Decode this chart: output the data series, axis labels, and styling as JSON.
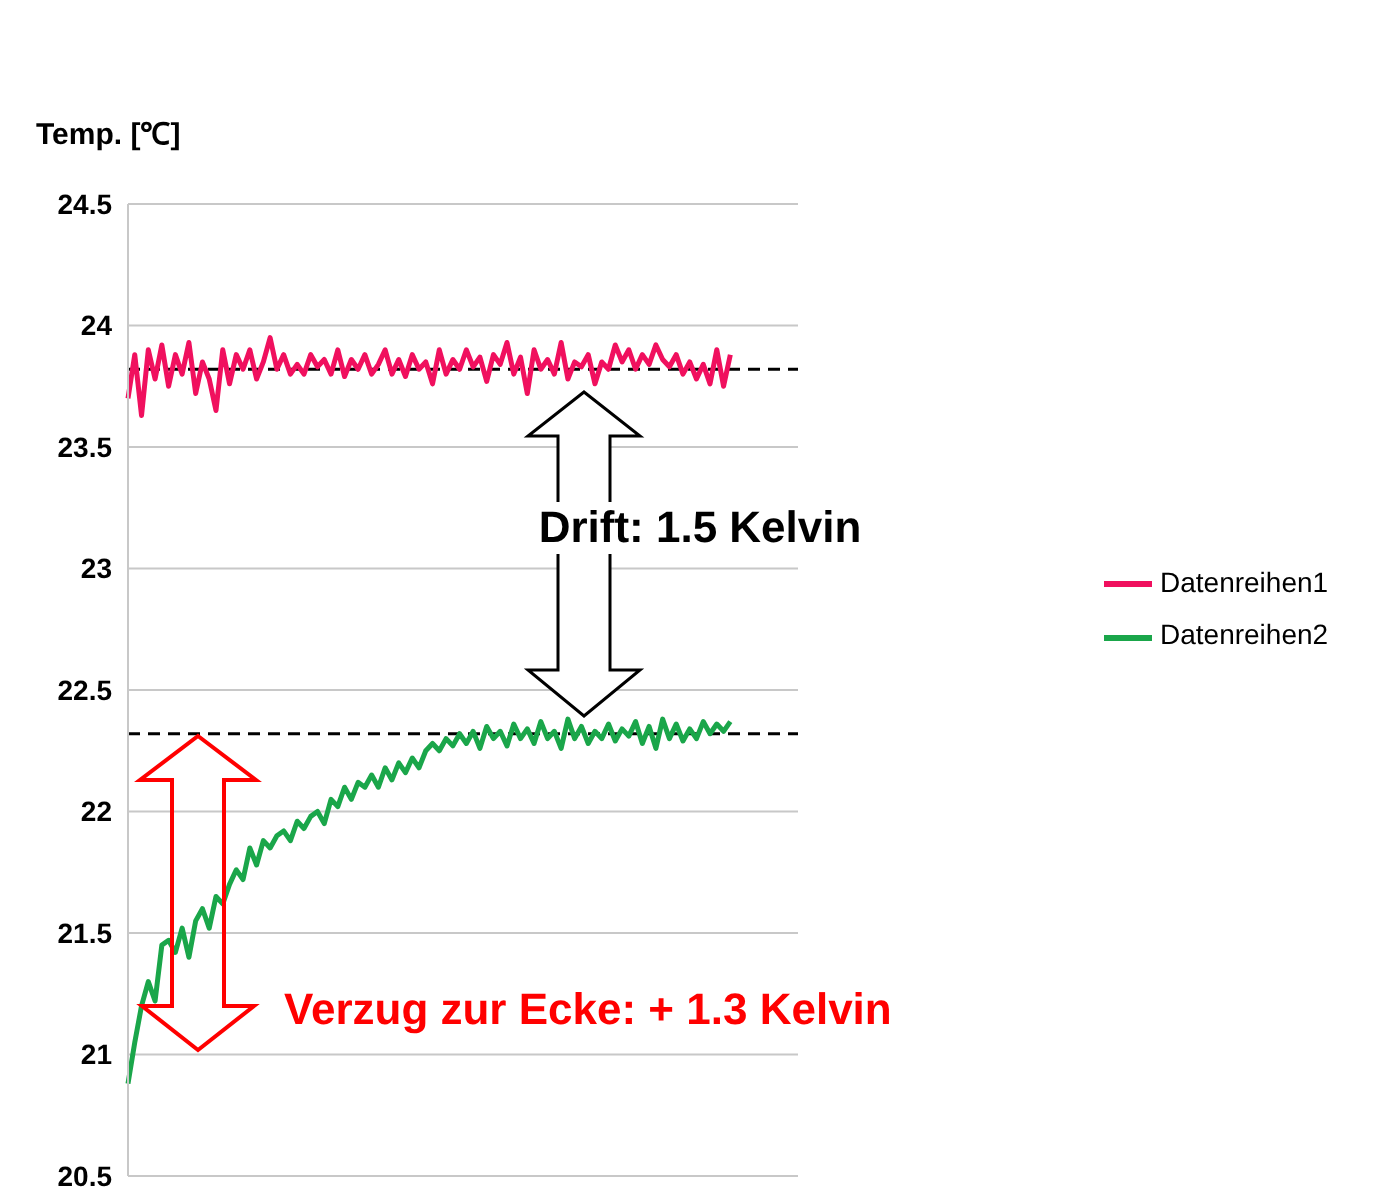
{
  "chart_data": {
    "type": "line",
    "ylabel": "Temp. [℃]",
    "categories": [
      null,
      null,
      null,
      null,
      null,
      null,
      null,
      null,
      null,
      null,
      null,
      null,
      null,
      null,
      null,
      null,
      null,
      null,
      null,
      null,
      null,
      null,
      null,
      null,
      null,
      null,
      null,
      null,
      null,
      null,
      null,
      null,
      null,
      null,
      null,
      null,
      null,
      null,
      null,
      null,
      null,
      null,
      null,
      null,
      null,
      null,
      null,
      null,
      null,
      null,
      null,
      null,
      null,
      null,
      null,
      null,
      null,
      null,
      null,
      null,
      null,
      null,
      null,
      null,
      null,
      null,
      null,
      null,
      null,
      null,
      null,
      null,
      null,
      null,
      null,
      null,
      null,
      null,
      null,
      null,
      null,
      null,
      null,
      null,
      null,
      null,
      null,
      null,
      null,
      null,
      null,
      null,
      null,
      null,
      null,
      null,
      null,
      null,
      null,
      null
    ],
    "series": [
      {
        "name": "Datenreihen1",
        "color": "#f0105e",
        "values": [
          23.7,
          23.88,
          23.63,
          23.9,
          23.78,
          23.92,
          23.75,
          23.88,
          23.8,
          23.93,
          23.72,
          23.85,
          23.78,
          23.65,
          23.9,
          23.76,
          23.88,
          23.82,
          23.9,
          23.78,
          23.85,
          23.95,
          23.82,
          23.88,
          23.8,
          23.84,
          23.8,
          23.88,
          23.83,
          23.86,
          23.8,
          23.9,
          23.79,
          23.86,
          23.82,
          23.88,
          23.8,
          23.84,
          23.9,
          23.8,
          23.86,
          23.79,
          23.88,
          23.82,
          23.85,
          23.76,
          23.9,
          23.8,
          23.86,
          23.82,
          23.9,
          23.83,
          23.87,
          23.77,
          23.88,
          23.84,
          23.93,
          23.8,
          23.87,
          23.72,
          23.9,
          23.82,
          23.86,
          23.8,
          23.93,
          23.78,
          23.85,
          23.83,
          23.88,
          23.76,
          23.85,
          23.82,
          23.92,
          23.85,
          23.9,
          23.82,
          23.88,
          23.84,
          23.92,
          23.86,
          23.83,
          23.88,
          23.8,
          23.85,
          23.78,
          23.84,
          23.76,
          23.9,
          23.75,
          23.88,
          null,
          null,
          null,
          null,
          null,
          null,
          null,
          null,
          null,
          null
        ]
      },
      {
        "name": "Datenreihen2",
        "color": "#1aa64a",
        "values": [
          20.88,
          21.05,
          21.2,
          21.3,
          21.22,
          21.45,
          21.47,
          21.42,
          21.52,
          21.4,
          21.55,
          21.6,
          21.52,
          21.65,
          21.62,
          21.7,
          21.76,
          21.72,
          21.85,
          21.78,
          21.88,
          21.85,
          21.9,
          21.92,
          21.88,
          21.96,
          21.93,
          21.98,
          22.0,
          21.95,
          22.05,
          22.02,
          22.1,
          22.05,
          22.12,
          22.1,
          22.15,
          22.1,
          22.18,
          22.13,
          22.2,
          22.16,
          22.22,
          22.18,
          22.25,
          22.28,
          22.25,
          22.3,
          22.27,
          22.32,
          22.28,
          22.33,
          22.26,
          22.35,
          22.3,
          22.33,
          22.27,
          22.36,
          22.3,
          22.34,
          22.28,
          22.37,
          22.3,
          22.33,
          22.26,
          22.38,
          22.3,
          22.35,
          22.28,
          22.33,
          22.3,
          22.36,
          22.29,
          22.34,
          22.31,
          22.37,
          22.28,
          22.35,
          22.26,
          22.38,
          22.3,
          22.36,
          22.29,
          22.34,
          22.3,
          22.37,
          22.32,
          22.36,
          22.33,
          22.37,
          null,
          null,
          null,
          null,
          null,
          null,
          null,
          null,
          null,
          null
        ]
      }
    ],
    "ylim": [
      20.5,
      24.5
    ],
    "yticks": [
      20.5,
      21,
      21.5,
      22,
      22.5,
      23,
      23.5,
      24,
      24.5
    ],
    "grid": "y",
    "legend": "right",
    "marker": "none",
    "line_style": "solid",
    "ref_lines": [
      {
        "axis": "y",
        "value": 23.82,
        "color": "#000000",
        "line_style": "dashed"
      },
      {
        "axis": "y",
        "value": 22.32,
        "color": "#000000",
        "line_style": "dashed"
      }
    ],
    "annotations": [
      "Drift: 1.5 Kelvin",
      "Verzug zur Ecke: + 1.3 Kelvin"
    ]
  }
}
